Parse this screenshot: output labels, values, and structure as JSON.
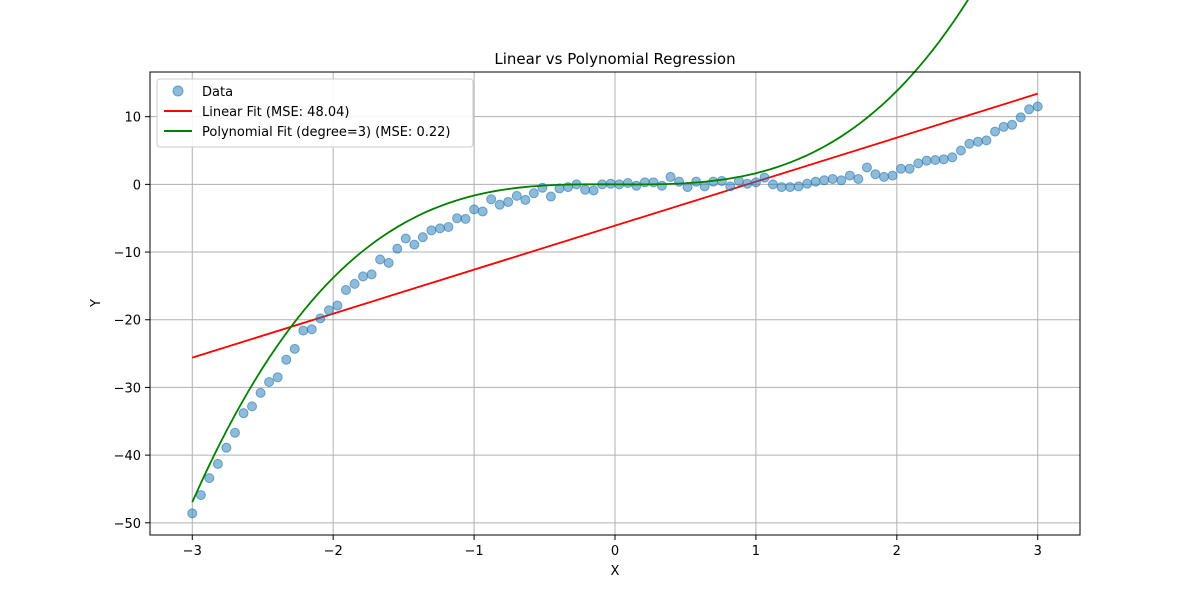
{
  "chart_data": {
    "type": "scatter",
    "title": "Linear vs Polynomial Regression",
    "xlabel": "X",
    "ylabel": "Y",
    "xlim": [
      -3.3,
      3.3
    ],
    "ylim": [
      -51.8,
      16.6
    ],
    "grid": true,
    "legend_position": "top-left",
    "x_ticks": [
      -3,
      -2,
      -1,
      0,
      1,
      2,
      3
    ],
    "x_tick_labels": [
      "−3",
      "−2",
      "−1",
      "0",
      "1",
      "2",
      "3"
    ],
    "y_ticks": [
      -50,
      -40,
      -30,
      -20,
      -10,
      0,
      10
    ],
    "y_tick_labels": [
      "−50",
      "−40",
      "−30",
      "−20",
      "−10",
      "0",
      "10"
    ],
    "series": [
      {
        "name": "Data",
        "kind": "scatter",
        "color": "#1f77b4",
        "x": [
          -3.0,
          -2.939,
          -2.879,
          -2.818,
          -2.758,
          -2.697,
          -2.636,
          -2.576,
          -2.515,
          -2.455,
          -2.394,
          -2.333,
          -2.273,
          -2.212,
          -2.152,
          -2.091,
          -2.03,
          -1.97,
          -1.909,
          -1.848,
          -1.788,
          -1.727,
          -1.667,
          -1.606,
          -1.545,
          -1.485,
          -1.424,
          -1.364,
          -1.303,
          -1.242,
          -1.182,
          -1.121,
          -1.061,
          -1.0,
          -0.939,
          -0.879,
          -0.818,
          -0.758,
          -0.697,
          -0.636,
          -0.576,
          -0.515,
          -0.455,
          -0.394,
          -0.333,
          -0.273,
          -0.212,
          -0.152,
          -0.091,
          -0.03,
          0.03,
          0.091,
          0.152,
          0.212,
          0.273,
          0.333,
          0.394,
          0.455,
          0.515,
          0.576,
          0.636,
          0.697,
          0.758,
          0.818,
          0.879,
          0.939,
          1.0,
          1.061,
          1.121,
          1.182,
          1.242,
          1.303,
          1.364,
          1.424,
          1.485,
          1.545,
          1.606,
          1.667,
          1.727,
          1.788,
          1.848,
          1.909,
          1.97,
          2.03,
          2.091,
          2.152,
          2.212,
          2.273,
          2.333,
          2.394,
          2.455,
          2.515,
          2.576,
          2.636,
          2.697,
          2.758,
          2.818,
          2.879,
          2.939,
          3.0
        ],
        "y": [
          -48.6,
          -45.9,
          -43.4,
          -41.3,
          -38.9,
          -36.7,
          -33.8,
          -32.8,
          -30.8,
          -29.2,
          -28.5,
          -25.9,
          -24.3,
          -21.6,
          -21.4,
          -19.8,
          -18.6,
          -17.9,
          -15.6,
          -14.7,
          -13.6,
          -13.3,
          -11.1,
          -11.6,
          -9.5,
          -8.0,
          -8.9,
          -7.8,
          -6.8,
          -6.5,
          -6.3,
          -5.0,
          -5.1,
          -3.7,
          -4.0,
          -2.2,
          -3.0,
          -2.6,
          -1.7,
          -2.3,
          -1.3,
          -0.5,
          -1.8,
          -0.6,
          -0.4,
          0.0,
          -0.8,
          -0.9,
          0.0,
          0.1,
          0.0,
          0.2,
          -0.2,
          0.3,
          0.3,
          -0.2,
          1.1,
          0.4,
          -0.4,
          0.4,
          -0.3,
          0.4,
          0.5,
          -0.3,
          0.5,
          0.1,
          0.3,
          1.0,
          0.0,
          -0.4,
          -0.4,
          -0.3,
          0.1,
          0.4,
          0.6,
          0.8,
          0.6,
          1.3,
          0.8,
          2.5,
          1.5,
          1.1,
          1.3,
          2.3,
          2.3,
          3.1,
          3.5,
          3.6,
          3.7,
          4.0,
          5.0,
          6.0,
          6.3,
          6.5,
          7.8,
          8.5,
          8.8,
          9.9,
          11.1,
          11.5
        ]
      },
      {
        "name": "Linear Fit (MSE: 48.04)",
        "kind": "line",
        "color": "#ff0000",
        "x": [
          -3,
          3
        ],
        "y": [
          -25.6,
          13.4
        ]
      },
      {
        "name": "Polynomial Fit (degree=3) (MSE: 0.22)",
        "kind": "curve",
        "color": "#008000",
        "x_range": [
          -3,
          3
        ],
        "coefficients_low_to_high": [
          0.0,
          -0.1,
          0.0,
          1.75
        ]
      }
    ]
  }
}
